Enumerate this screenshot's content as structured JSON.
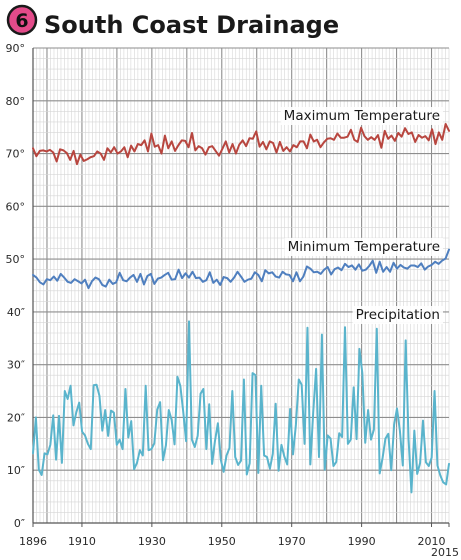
{
  "badge": {
    "number": "6",
    "color": "#e34b8a"
  },
  "title": "South Coast Drainage",
  "chart_data": {
    "type": "line",
    "grid": true,
    "x_range": [
      1896,
      2015
    ],
    "y_range": [
      0,
      90
    ],
    "x_ticks": [
      {
        "value": 1896,
        "label": "1896"
      },
      {
        "value": 1910,
        "label": "1910"
      },
      {
        "value": 1930,
        "label": "1930"
      },
      {
        "value": 1950,
        "label": "1950"
      },
      {
        "value": 1970,
        "label": "1970"
      },
      {
        "value": 1990,
        "label": "1990"
      },
      {
        "value": 2010,
        "label": "2010"
      },
      {
        "value": 2015,
        "label": "2015"
      }
    ],
    "y_ticks": [
      {
        "value": 0,
        "label": "0″"
      },
      {
        "value": 10,
        "label": "10″"
      },
      {
        "value": 20,
        "label": "20″"
      },
      {
        "value": 30,
        "label": "30″"
      },
      {
        "value": 40,
        "label": "40″"
      },
      {
        "value": 50,
        "label": "50°"
      },
      {
        "value": 60,
        "label": "60°"
      },
      {
        "value": 70,
        "label": "70°"
      },
      {
        "value": 80,
        "label": "80°"
      },
      {
        "value": 90,
        "label": "90°"
      }
    ],
    "series": [
      {
        "name": "Maximum Temperature",
        "color": "#b8463f",
        "start_year": 1896,
        "values": [
          71.0,
          69.5,
          70.5,
          70.6,
          70.4,
          70.7,
          70.2,
          68.5,
          70.8,
          70.6,
          70.1,
          68.8,
          70.5,
          68.0,
          69.8,
          68.6,
          68.9,
          69.3,
          69.5,
          70.4,
          70.0,
          68.8,
          71.0,
          70.2,
          71.2,
          70.0,
          70.4,
          71.2,
          69.3,
          71.5,
          70.4,
          71.8,
          71.6,
          72.5,
          70.4,
          73.8,
          71.3,
          71.6,
          70.0,
          73.4,
          71.0,
          72.3,
          70.5,
          71.6,
          72.5,
          72.4,
          71.2,
          73.9,
          70.6,
          71.4,
          71.0,
          69.8,
          71.2,
          71.4,
          70.5,
          69.6,
          70.9,
          72.3,
          70.2,
          71.8,
          70.0,
          71.7,
          72.5,
          71.4,
          72.9,
          72.8,
          74.2,
          71.3,
          72.2,
          70.8,
          72.3,
          72.0,
          70.2,
          72.2,
          70.5,
          71.2,
          70.4,
          71.6,
          71.2,
          72.3,
          72.3,
          71.0,
          73.6,
          72.3,
          72.6,
          71.2,
          72.1,
          72.8,
          72.9,
          72.6,
          73.8,
          73.0,
          73.0,
          73.2,
          74.5,
          72.6,
          72.2,
          74.9,
          73.3,
          72.6,
          73.1,
          72.6,
          73.5,
          71.1,
          74.3,
          72.8,
          73.4,
          72.4,
          73.9,
          73.2,
          74.8,
          73.7,
          74.0,
          72.2,
          73.5,
          73.0,
          73.3,
          72.5,
          74.6,
          71.8,
          74.0,
          72.6,
          75.6,
          74.3
        ]
      },
      {
        "name": "Minimum Temperature",
        "color": "#4f7fbf",
        "start_year": 1896,
        "values": [
          47.0,
          46.5,
          45.6,
          45.2,
          46.2,
          46.0,
          46.7,
          45.9,
          47.2,
          46.5,
          45.7,
          45.5,
          46.2,
          45.8,
          45.4,
          46.1,
          44.5,
          45.8,
          46.5,
          46.2,
          45.1,
          44.8,
          46.1,
          45.3,
          45.6,
          47.4,
          46.0,
          45.8,
          46.5,
          47.0,
          45.7,
          47.2,
          45.2,
          46.8,
          47.2,
          45.3,
          46.3,
          46.5,
          47.0,
          47.4,
          46.1,
          46.2,
          48.0,
          46.4,
          47.3,
          46.5,
          47.6,
          46.4,
          46.5,
          45.7,
          46.0,
          47.5,
          45.5,
          46.1,
          45.1,
          46.6,
          46.4,
          45.7,
          46.5,
          47.6,
          46.7,
          45.7,
          46.1,
          46.3,
          47.5,
          47.0,
          45.8,
          47.9,
          47.3,
          47.5,
          46.7,
          46.5,
          47.6,
          47.1,
          47.0,
          45.8,
          47.5,
          45.8,
          46.7,
          48.6,
          48.2,
          47.5,
          47.6,
          47.2,
          48.0,
          48.5,
          47.1,
          48.1,
          48.4,
          47.9,
          49.1,
          48.5,
          48.8,
          48.0,
          49.0,
          47.8,
          48.0,
          48.7,
          49.7,
          47.4,
          49.5,
          47.6,
          48.5,
          47.6,
          49.3,
          48.2,
          48.9,
          48.4,
          48.2,
          48.8,
          48.8,
          48.5,
          49.2,
          48.0,
          48.6,
          48.9,
          49.5,
          49.1,
          49.7,
          50.1,
          51.8
        ]
      },
      {
        "name": "Precipitation",
        "color": "#5ab4cc",
        "start_year": 1896,
        "values": [
          13.2,
          20.0,
          10.1,
          9.1,
          13.2,
          13.0,
          14.8,
          20.4,
          12.0,
          20.3,
          11.4,
          25.0,
          23.5,
          26.0,
          18.5,
          21.0,
          22.8,
          17.3,
          16.6,
          15.0,
          14.0,
          26.1,
          26.2,
          24.1,
          17.5,
          21.4,
          16.5,
          21.3,
          20.9,
          14.8,
          15.8,
          14.0,
          25.4,
          16.2,
          19.3,
          10.2,
          11.4,
          13.8,
          12.8,
          26.0,
          13.8,
          14.0,
          15.1,
          21.5,
          22.9,
          11.9,
          14.7,
          21.4,
          19.5,
          14.9,
          27.7,
          26.0,
          21.1,
          15.5,
          38.2,
          15.8,
          14.4,
          16.5,
          24.5,
          25.4,
          14.0,
          22.5,
          11.2,
          15.6,
          18.9,
          12.0,
          9.7,
          12.8,
          14.2,
          25.0,
          12.5,
          11.0,
          11.8,
          27.2,
          9.2,
          11.3,
          28.4,
          28.0,
          9.5,
          26.0,
          12.8,
          12.5,
          10.3,
          13.1,
          22.6,
          9.9,
          14.8,
          12.6,
          11.1,
          21.6,
          13.0,
          18.6,
          27.2,
          26.2,
          15.0,
          37.0,
          11.1,
          21.0,
          29.2,
          12.5,
          35.7,
          10.1,
          16.6,
          16.0,
          10.8,
          11.6,
          17.0,
          16.3,
          37.1,
          15.0,
          15.8,
          25.7,
          15.9,
          33.0,
          28.4,
          15.2,
          21.4,
          15.8,
          17.7,
          36.8,
          9.4,
          12.3,
          16.0,
          16.9,
          10.0,
          18.6,
          21.7,
          17.5,
          10.9,
          34.6,
          15.9,
          5.8,
          17.5,
          9.3,
          11.4,
          19.4,
          11.5,
          10.8,
          12.4,
          25.0,
          10.9,
          9.0,
          7.7,
          7.3,
          11.2
        ]
      }
    ]
  }
}
